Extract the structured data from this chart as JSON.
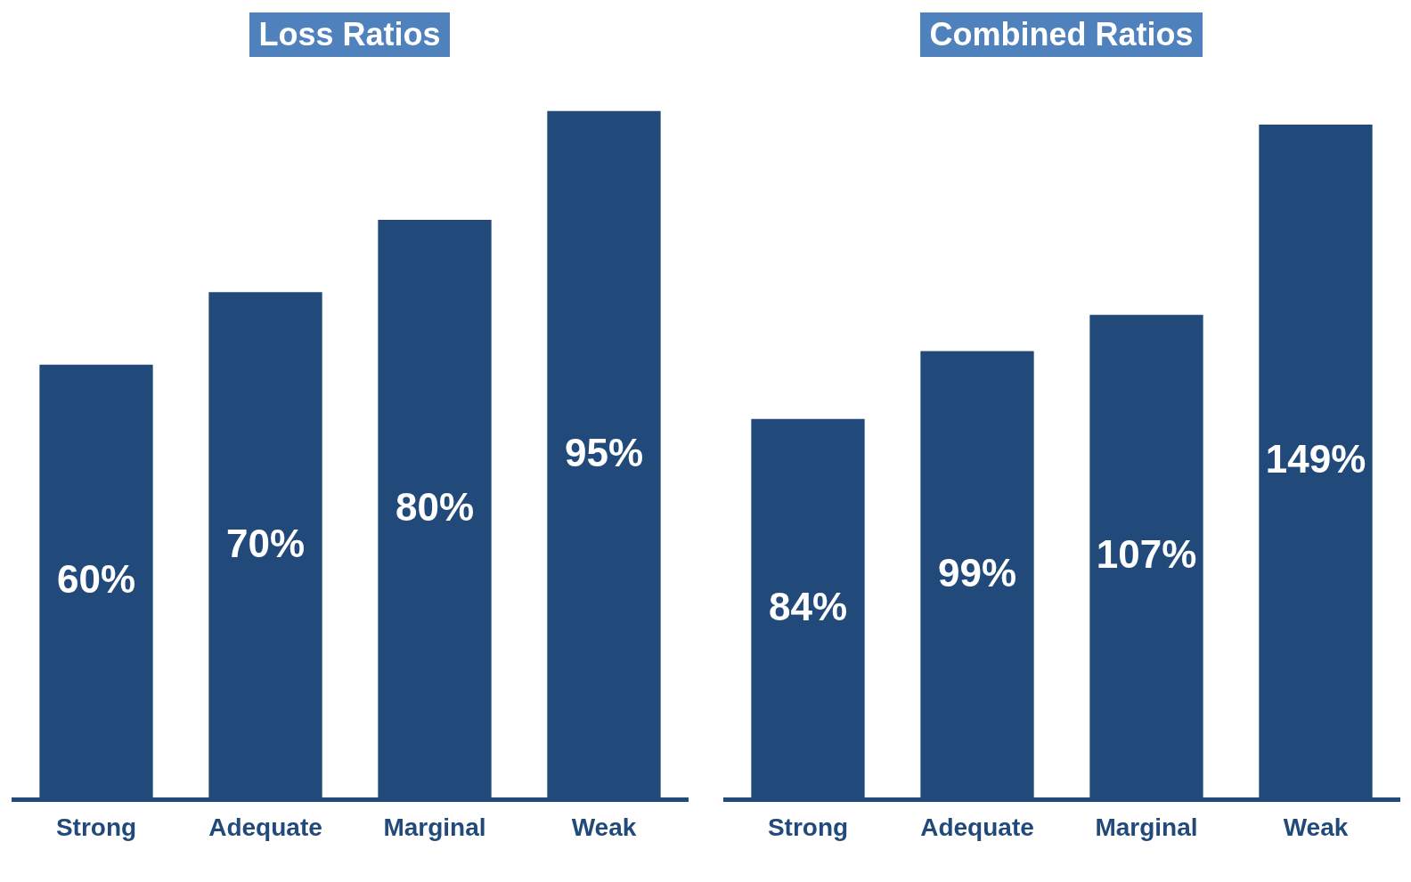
{
  "chart_data": [
    {
      "type": "bar",
      "title": "Loss Ratios",
      "categories": [
        "Strong",
        "Adequate",
        "Marginal",
        "Weak"
      ],
      "values": [
        60,
        70,
        80,
        95
      ],
      "value_labels": [
        "60%",
        "70%",
        "80%",
        "95%"
      ],
      "color": "#214a7b",
      "grid": false,
      "legend": false,
      "tick_labels": "x"
    },
    {
      "type": "bar",
      "title": "Combined Ratios",
      "categories": [
        "Strong",
        "Adequate",
        "Marginal",
        "Weak"
      ],
      "values": [
        84,
        99,
        107,
        149
      ],
      "value_labels": [
        "84%",
        "99%",
        "107%",
        "149%"
      ],
      "color": "#214a7b",
      "grid": false,
      "legend": false,
      "tick_labels": "x"
    }
  ]
}
